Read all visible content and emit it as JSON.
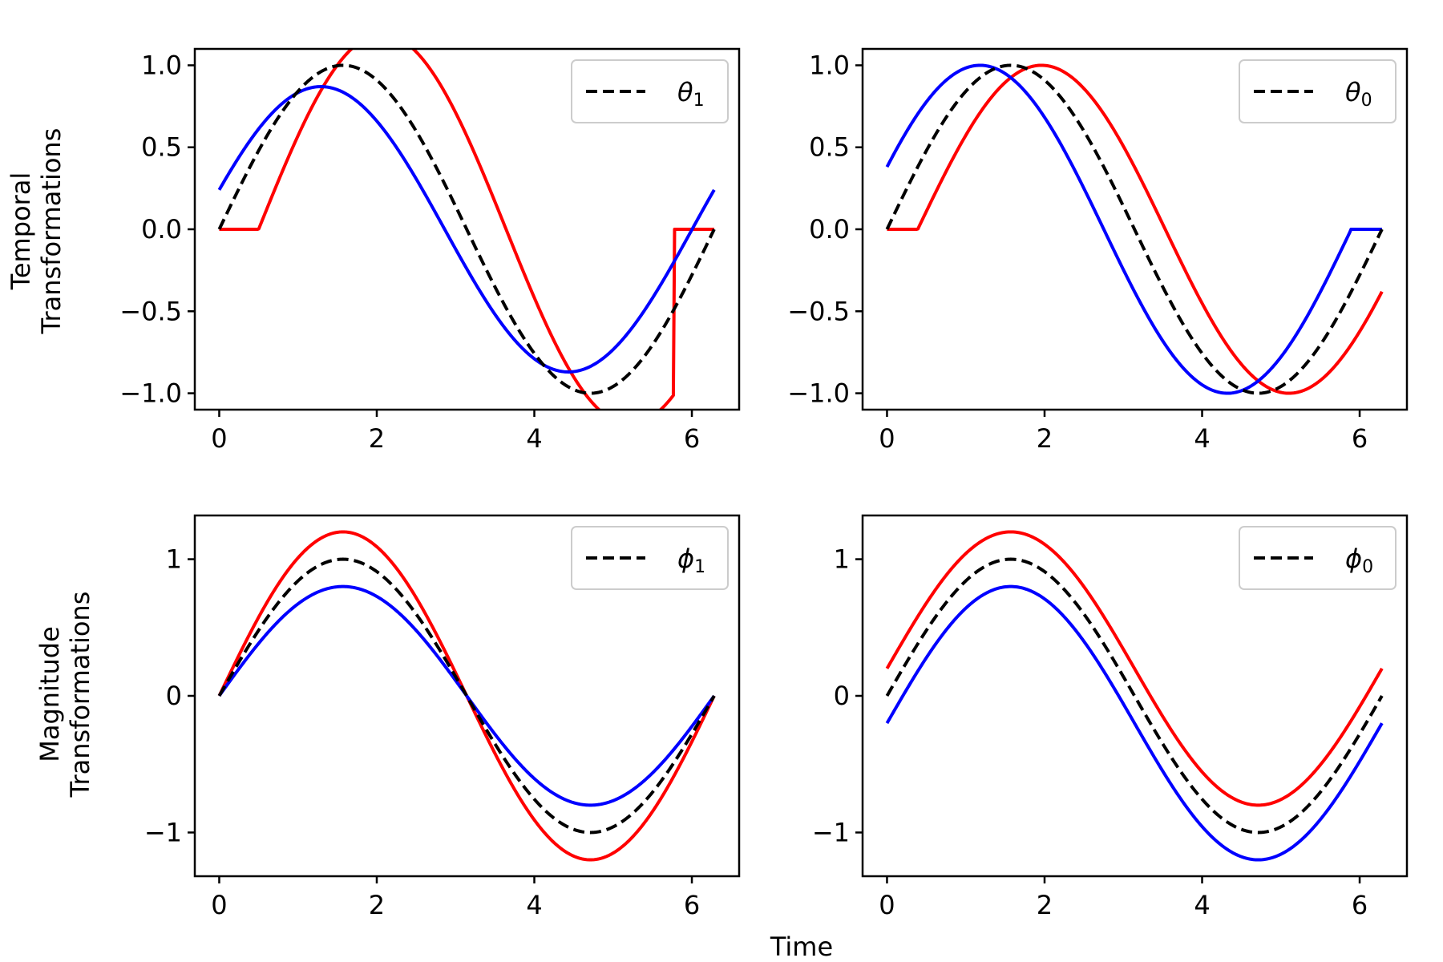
{
  "figure": {
    "xlabel": "Time",
    "row_labels": [
      [
        "Temporal",
        "Transformations"
      ],
      [
        "Magnitude",
        "Transformations"
      ]
    ]
  },
  "chart_data": [
    {
      "type": "line",
      "panel": "top-left",
      "xlim": [
        -0.31,
        6.6
      ],
      "ylim": [
        -1.1,
        1.1
      ],
      "xticks": [
        0,
        2,
        4,
        6
      ],
      "yticks": [
        -1.0,
        -0.5,
        0.0,
        0.5,
        1.0
      ],
      "ytick_labels": [
        "−1.0",
        "−0.5",
        "0.0",
        "0.5",
        "1.0"
      ],
      "legend": {
        "symbol": "θ",
        "subscript": "1",
        "placement": "top-right"
      },
      "series": [
        {
          "role": "reference",
          "color": "#000000",
          "dashed": true,
          "function": "sin",
          "shift": 0,
          "scale": 1,
          "offset": 0,
          "clip": null
        },
        {
          "role": "upper",
          "color": "#ff0000",
          "dashed": false,
          "function": "sin",
          "shift": 0.5,
          "scale": 1.19,
          "offset": 0,
          "clip": [
            0.5,
            5.78
          ]
        },
        {
          "role": "lower",
          "color": "#0000ff",
          "dashed": false,
          "function": "sin",
          "shift": -0.28,
          "scale": 0.87,
          "offset": 0,
          "clip": null
        }
      ]
    },
    {
      "type": "line",
      "panel": "top-right",
      "xlim": [
        -0.31,
        6.6
      ],
      "ylim": [
        -1.1,
        1.1
      ],
      "xticks": [
        0,
        2,
        4,
        6
      ],
      "yticks": [
        -1.0,
        -0.5,
        0.0,
        0.5,
        1.0
      ],
      "ytick_labels": [
        "−1.0",
        "−0.5",
        "0.0",
        "0.5",
        "1.0"
      ],
      "legend": {
        "symbol": "θ",
        "subscript": "0",
        "placement": "top-right"
      },
      "series": [
        {
          "role": "reference",
          "color": "#000000",
          "dashed": true,
          "function": "sin",
          "shift": 0,
          "scale": 1,
          "offset": 0,
          "clip": null
        },
        {
          "role": "upper",
          "color": "#ff0000",
          "dashed": false,
          "function": "sin",
          "shift": 0.39,
          "scale": 1,
          "offset": 0,
          "clip": [
            0.39,
            7
          ]
        },
        {
          "role": "lower",
          "color": "#0000ff",
          "dashed": false,
          "function": "sin",
          "shift": -0.39,
          "scale": 1,
          "offset": 0,
          "clip": [
            -1,
            5.89
          ]
        }
      ]
    },
    {
      "type": "line",
      "panel": "bottom-left",
      "xlim": [
        -0.31,
        6.6
      ],
      "ylim": [
        -1.32,
        1.32
      ],
      "xticks": [
        0,
        2,
        4,
        6
      ],
      "yticks": [
        -1,
        0,
        1
      ],
      "ytick_labels": [
        "−1",
        "0",
        "1"
      ],
      "legend": {
        "symbol": "ϕ",
        "subscript": "1",
        "placement": "top-right"
      },
      "series": [
        {
          "role": "reference",
          "color": "#000000",
          "dashed": true,
          "function": "sin",
          "shift": 0,
          "scale": 1,
          "offset": 0,
          "clip": null
        },
        {
          "role": "upper",
          "color": "#ff0000",
          "dashed": false,
          "function": "sin",
          "shift": 0,
          "scale": 1.2,
          "offset": 0,
          "clip": null
        },
        {
          "role": "lower",
          "color": "#0000ff",
          "dashed": false,
          "function": "sin",
          "shift": 0,
          "scale": 0.8,
          "offset": 0,
          "clip": null
        }
      ]
    },
    {
      "type": "line",
      "panel": "bottom-right",
      "xlim": [
        -0.31,
        6.6
      ],
      "ylim": [
        -1.32,
        1.32
      ],
      "xticks": [
        0,
        2,
        4,
        6
      ],
      "yticks": [
        -1,
        0,
        1
      ],
      "ytick_labels": [
        "−1",
        "0",
        "1"
      ],
      "legend": {
        "symbol": "ϕ",
        "subscript": "0",
        "placement": "top-right"
      },
      "series": [
        {
          "role": "reference",
          "color": "#000000",
          "dashed": true,
          "function": "sin",
          "shift": 0,
          "scale": 1,
          "offset": 0,
          "clip": null
        },
        {
          "role": "upper",
          "color": "#ff0000",
          "dashed": false,
          "function": "sin",
          "shift": 0,
          "scale": 1,
          "offset": 0.2,
          "clip": null
        },
        {
          "role": "lower",
          "color": "#0000ff",
          "dashed": false,
          "function": "sin",
          "shift": 0,
          "scale": 1,
          "offset": -0.2,
          "clip": null
        }
      ]
    }
  ]
}
